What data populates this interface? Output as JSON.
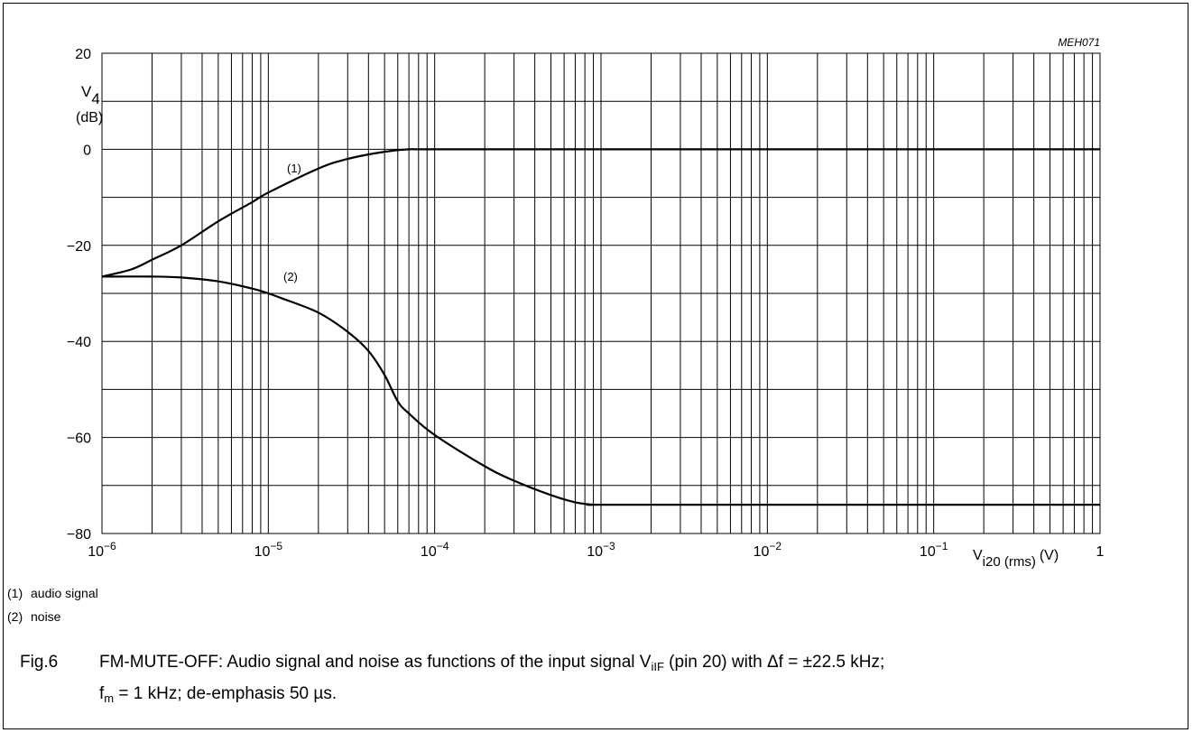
{
  "figure_code": "MEH071",
  "y_axis_label": {
    "symbol": "V",
    "subscript": "4",
    "unit": "(dB)"
  },
  "x_axis_label": {
    "symbol": "V",
    "subscript": "i20 (rms)",
    "unit": "(V)"
  },
  "x_tick_labels": [
    {
      "base": "10",
      "exp": "−6"
    },
    {
      "base": "10",
      "exp": "−5"
    },
    {
      "base": "10",
      "exp": "−4"
    },
    {
      "base": "10",
      "exp": "−3"
    },
    {
      "base": "10",
      "exp": "−2"
    },
    {
      "base": "10",
      "exp": "−1"
    },
    {
      "base": "1",
      "exp": ""
    }
  ],
  "y_tick_labels": [
    "20",
    "0",
    "−20",
    "−40",
    "−60",
    "−80"
  ],
  "curve_labels": [
    "(1)",
    "(2)"
  ],
  "legend": [
    {
      "key": "(1)",
      "text": "audio signal"
    },
    {
      "key": "(2)",
      "text": "noise"
    }
  ],
  "caption": {
    "fig": "Fig.6",
    "text_a": "FM-MUTE-OFF: Audio signal and noise as functions of the input signal V",
    "sub_a": "iIF",
    "text_b": " (pin 20) with Δf = ±22.5 kHz;",
    "f": "f",
    "sub_f": "m",
    "text_c": " = 1 kHz; de-emphasis 50 µs."
  },
  "chart_data": {
    "type": "line",
    "x_scale": "log",
    "xlim": [
      1e-06,
      1
    ],
    "ylim": [
      -80,
      20
    ],
    "grid": true,
    "series": [
      {
        "name": "(1)",
        "x": [
          1e-06,
          1.5e-06,
          2e-06,
          3e-06,
          5e-06,
          8e-06,
          1e-05,
          2e-05,
          3e-05,
          5e-05,
          7e-05,
          0.0001,
          0.001,
          0.01,
          0.1,
          1
        ],
        "y": [
          -26.5,
          -25,
          -23,
          -20,
          -15,
          -11,
          -9,
          -4,
          -2,
          -0.5,
          0,
          0,
          0,
          0,
          0,
          0
        ]
      },
      {
        "name": "(2)",
        "x": [
          1e-06,
          2e-06,
          3e-06,
          5e-06,
          8e-06,
          1e-05,
          1.2e-05,
          2e-05,
          3e-05,
          4e-05,
          5e-05,
          6e-05,
          7e-05,
          0.0001,
          0.0002,
          0.0003,
          0.0005,
          0.0007,
          0.0009,
          0.001,
          0.01,
          0.1,
          1
        ],
        "y": [
          -26.5,
          -26.5,
          -26.7,
          -27.5,
          -29,
          -30,
          -31,
          -34,
          -38,
          -42,
          -47,
          -52.5,
          -55,
          -59.5,
          -66,
          -69,
          -72,
          -73.5,
          -74,
          -74,
          -74,
          -74,
          -74
        ]
      }
    ]
  }
}
